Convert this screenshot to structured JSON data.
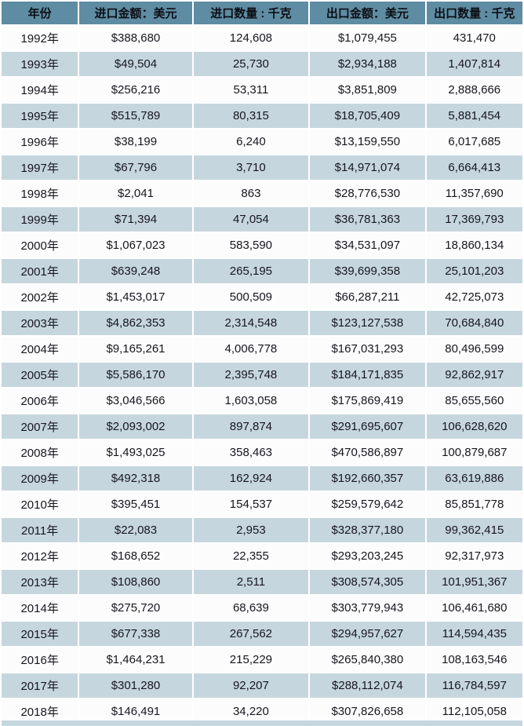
{
  "colors": {
    "header_bg": "#5E8CA2",
    "row_bg": "#FCFCFC",
    "row_alt_bg": "#C6D6DF",
    "grid": "#FFFFFF",
    "text": "#16161E"
  },
  "chart_data": {
    "type": "table",
    "columns": [
      "年份",
      "进口金额：美元",
      "进口数量 : 千克",
      "出口金额：美元",
      "出口数量 : 千克"
    ],
    "rows": [
      [
        "1992年",
        "$388,680",
        "124,608",
        "$1,079,455",
        "431,470"
      ],
      [
        "1993年",
        "$49,504",
        "25,730",
        "$2,934,188",
        "1,407,814"
      ],
      [
        "1994年",
        "$256,216",
        "53,311",
        "$3,851,809",
        "2,888,666"
      ],
      [
        "1995年",
        "$515,789",
        "80,315",
        "$18,705,409",
        "5,881,454"
      ],
      [
        "1996年",
        "$38,199",
        "6,240",
        "$13,159,550",
        "6,017,685"
      ],
      [
        "1997年",
        "$67,796",
        "3,710",
        "$14,971,074",
        "6,664,413"
      ],
      [
        "1998年",
        "$2,041",
        "863",
        "$28,776,530",
        "11,357,690"
      ],
      [
        "1999年",
        "$71,394",
        "47,054",
        "$36,781,363",
        "17,369,793"
      ],
      [
        "2000年",
        "$1,067,023",
        "583,590",
        "$34,531,097",
        "18,860,134"
      ],
      [
        "2001年",
        "$639,248",
        "265,195",
        "$39,699,358",
        "25,101,203"
      ],
      [
        "2002年",
        "$1,453,017",
        "500,509",
        "$66,287,211",
        "42,725,073"
      ],
      [
        "2003年",
        "$4,862,353",
        "2,314,548",
        "$123,127,538",
        "70,684,840"
      ],
      [
        "2004年",
        "$9,165,261",
        "4,006,778",
        "$167,031,293",
        "80,496,599"
      ],
      [
        "2005年",
        "$5,586,170",
        "2,395,748",
        "$184,171,835",
        "92,862,917"
      ],
      [
        "2006年",
        "$3,046,566",
        "1,603,058",
        "$175,869,419",
        "85,655,560"
      ],
      [
        "2007年",
        "$2,093,002",
        "897,874",
        "$291,695,607",
        "106,628,620"
      ],
      [
        "2008年",
        "$1,493,025",
        "358,463",
        "$470,586,897",
        "100,879,687"
      ],
      [
        "2009年",
        "$492,318",
        "162,924",
        "$192,660,357",
        "63,619,886"
      ],
      [
        "2010年",
        "$395,451",
        "154,537",
        "$259,579,642",
        "85,851,778"
      ],
      [
        "2011年",
        "$22,083",
        "2,953",
        "$328,377,180",
        "99,362,415"
      ],
      [
        "2012年",
        "$168,652",
        "22,355",
        "$293,203,245",
        "92,317,973"
      ],
      [
        "2013年",
        "$108,860",
        "2,511",
        "$308,574,305",
        "101,951,367"
      ],
      [
        "2014年",
        "$275,720",
        "68,639",
        "$303,779,943",
        "106,461,680"
      ],
      [
        "2015年",
        "$677,338",
        "267,562",
        "$294,957,627",
        "114,594,435"
      ],
      [
        "2016年",
        "$1,464,231",
        "215,229",
        "$265,840,380",
        "108,163,546"
      ],
      [
        "2017年",
        "$301,280",
        "92,207",
        "$288,112,074",
        "116,784,597"
      ],
      [
        "2018年",
        "$146,491",
        "34,220",
        "$307,826,658",
        "112,105,058"
      ]
    ]
  }
}
